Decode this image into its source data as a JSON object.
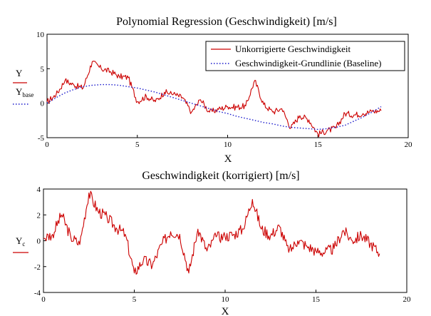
{
  "colors": {
    "primary": "#cc0000",
    "baseline": "#1a1acc",
    "axis": "#000000",
    "grid": "#c0c0c0"
  },
  "charts": [
    {
      "title": "Polynomial Regression (Geschwindigkeit) [m/s]",
      "xlabel": "X",
      "ylabel_main": "Y",
      "ylabel_base_letter": "Y",
      "ylabel_base_sub": "base",
      "legend": {
        "red": "Unkorrigierte Geschwindigkeit",
        "blue": "Geschwindigkeit-Grundlinie (Baseline)"
      }
    },
    {
      "title": "Geschwindigkeit (korrigiert) [m/s]",
      "xlabel": "X",
      "ylabel_letter": "Y",
      "ylabel_sub": "c"
    }
  ],
  "chart_data": [
    {
      "type": "line",
      "title": "Polynomial Regression (Geschwindigkeit) [m/s]",
      "xlabel": "X",
      "xlim": [
        0,
        20
      ],
      "ylim": [
        -5,
        10
      ],
      "xticks": [
        "0",
        "5",
        "10",
        "15",
        "20"
      ],
      "yticks": [
        "-5",
        "0",
        "5",
        "10"
      ],
      "legend_position": "top-right",
      "series": [
        {
          "name": "Unkorrigierte Geschwindigkeit",
          "style": "solid",
          "x": [
            0,
            0.5,
            1.0,
            1.5,
            2.0,
            2.5,
            3.0,
            3.5,
            4.0,
            4.5,
            5.0,
            5.5,
            6.0,
            6.5,
            7.0,
            7.5,
            8.0,
            8.5,
            9.0,
            9.5,
            10.0,
            10.5,
            11.0,
            11.5,
            12.0,
            12.5,
            13.0,
            13.5,
            14.0,
            14.5,
            15.0,
            15.5,
            16.0,
            16.5,
            17.0,
            17.5,
            18.0,
            18.5
          ],
          "y": [
            0.2,
            1.2,
            3.3,
            2.6,
            2.2,
            6.0,
            5.0,
            4.6,
            3.9,
            3.7,
            0.2,
            1.0,
            0.2,
            1.6,
            1.3,
            0.8,
            -1.3,
            0.5,
            -1.3,
            -0.9,
            -0.5,
            -0.6,
            -0.4,
            3.3,
            -0.2,
            -1.3,
            -0.8,
            -3.6,
            -1.8,
            -2.4,
            -4.5,
            -4.0,
            -3.6,
            -1.5,
            -1.7,
            -1.5,
            -1.2,
            -1.1
          ]
        },
        {
          "name": "Geschwindigkeit-Grundlinie (Baseline)",
          "style": "dotted",
          "x": [
            0,
            0.5,
            1.0,
            1.5,
            2.0,
            2.5,
            3.0,
            3.5,
            4.0,
            4.5,
            5.0,
            5.5,
            6.0,
            6.5,
            7.0,
            7.5,
            8.0,
            8.5,
            9.0,
            9.5,
            10.0,
            10.5,
            11.0,
            11.5,
            12.0,
            12.5,
            13.0,
            13.5,
            14.0,
            14.5,
            15.0,
            15.5,
            16.0,
            16.5,
            17.0,
            17.5,
            18.0,
            18.5
          ],
          "y": [
            0.0,
            0.8,
            1.5,
            2.0,
            2.4,
            2.6,
            2.7,
            2.7,
            2.6,
            2.4,
            2.2,
            1.9,
            1.6,
            1.2,
            0.8,
            0.4,
            0.0,
            -0.4,
            -0.8,
            -1.2,
            -1.5,
            -1.9,
            -2.2,
            -2.5,
            -2.8,
            -3.0,
            -3.3,
            -3.5,
            -3.6,
            -3.7,
            -3.8,
            -3.7,
            -3.5,
            -3.2,
            -2.6,
            -2.0,
            -1.3,
            -0.5
          ]
        }
      ]
    },
    {
      "type": "line",
      "title": "Geschwindigkeit (korrigiert) [m/s]",
      "xlabel": "X",
      "xlim": [
        0,
        20
      ],
      "ylim": [
        -4,
        4
      ],
      "xticks": [
        "0",
        "5",
        "10",
        "15",
        "20"
      ],
      "yticks": [
        "-4",
        "-2",
        "0",
        "2",
        "4"
      ],
      "series": [
        {
          "name": "",
          "style": "solid",
          "x": [
            0,
            0.5,
            1.0,
            1.5,
            2.0,
            2.5,
            3.0,
            3.5,
            4.0,
            4.5,
            5.0,
            5.5,
            6.0,
            6.5,
            7.0,
            7.5,
            8.0,
            8.5,
            9.0,
            9.5,
            10.0,
            10.5,
            11.0,
            11.5,
            12.0,
            12.5,
            13.0,
            13.5,
            14.0,
            14.5,
            15.0,
            15.5,
            16.0,
            16.5,
            17.0,
            17.5,
            18.0,
            18.5
          ],
          "y": [
            0.2,
            0.5,
            2.0,
            0.3,
            -0.3,
            3.7,
            2.3,
            1.8,
            1.0,
            0.5,
            -2.5,
            -1.5,
            -1.9,
            -0.3,
            0.7,
            0.5,
            -2.5,
            0.9,
            -0.8,
            0.3,
            0.3,
            0.5,
            0.9,
            3.2,
            0.9,
            0.4,
            1.1,
            -0.9,
            0.0,
            -0.4,
            -0.8,
            -0.9,
            -0.6,
            0.8,
            0.0,
            0.4,
            -0.2,
            -1.0
          ]
        }
      ]
    }
  ]
}
